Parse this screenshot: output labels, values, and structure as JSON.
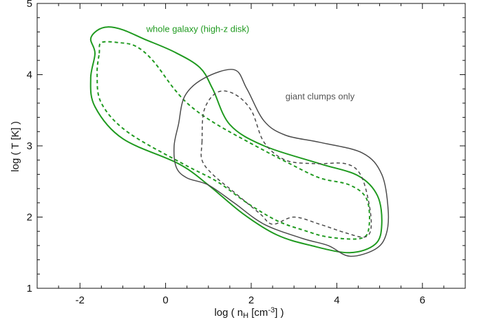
{
  "chart_data": {
    "type": "line",
    "xlabel": "log ( n",
    "xlabel_sub": "H",
    "xlabel_unit": " [cm",
    "xlabel_sup": "-3",
    "xlabel_end": "] )",
    "ylabel": "log ( T [K] )",
    "xlim": [
      -3,
      7
    ],
    "ylim": [
      1,
      5
    ],
    "xticks": [
      -2,
      0,
      2,
      4,
      6
    ],
    "yticks": [
      1,
      2,
      3,
      4,
      5
    ],
    "grid": false,
    "annotations": [
      {
        "text": "whole galaxy (high-z disk)",
        "color": "#1f9a1f",
        "x": -0.45,
        "y": 4.6
      },
      {
        "text": "giant clumps only",
        "color": "#555555",
        "x": 2.8,
        "y": 3.65
      }
    ],
    "series": [
      {
        "color": "#1f9a1f",
        "style": "solid",
        "closed": true,
        "points": [
          [
            -1.75,
            4.5
          ],
          [
            -1.6,
            4.62
          ],
          [
            -1.35,
            4.67
          ],
          [
            -1.0,
            4.63
          ],
          [
            -0.5,
            4.5
          ],
          [
            0.2,
            4.32
          ],
          [
            0.8,
            4.1
          ],
          [
            1.1,
            3.8
          ],
          [
            1.5,
            3.3
          ],
          [
            2.3,
            3.0
          ],
          [
            3.6,
            2.75
          ],
          [
            4.5,
            2.58
          ],
          [
            4.95,
            2.3
          ],
          [
            5.05,
            1.9
          ],
          [
            4.9,
            1.62
          ],
          [
            4.3,
            1.5
          ],
          [
            3.4,
            1.6
          ],
          [
            2.6,
            1.75
          ],
          [
            1.8,
            2.05
          ],
          [
            1.0,
            2.45
          ],
          [
            0.3,
            2.75
          ],
          [
            -1.0,
            3.1
          ],
          [
            -1.65,
            3.55
          ],
          [
            -1.75,
            3.95
          ],
          [
            -1.65,
            4.3
          ]
        ]
      },
      {
        "color": "#1f9a1f",
        "style": "dashed",
        "closed": true,
        "points": [
          [
            -1.55,
            4.3
          ],
          [
            -1.5,
            4.45
          ],
          [
            -1.1,
            4.45
          ],
          [
            -0.7,
            4.4
          ],
          [
            -0.3,
            4.2
          ],
          [
            0.2,
            3.8
          ],
          [
            0.6,
            3.55
          ],
          [
            1.2,
            3.3
          ],
          [
            2.1,
            3.0
          ],
          [
            2.9,
            2.75
          ],
          [
            3.6,
            2.55
          ],
          [
            4.3,
            2.45
          ],
          [
            4.7,
            2.25
          ],
          [
            4.75,
            1.85
          ],
          [
            4.55,
            1.7
          ],
          [
            3.8,
            1.72
          ],
          [
            3.2,
            1.82
          ],
          [
            2.6,
            1.95
          ],
          [
            1.9,
            2.2
          ],
          [
            1.2,
            2.5
          ],
          [
            0.4,
            2.75
          ],
          [
            -0.9,
            3.2
          ],
          [
            -1.5,
            3.6
          ],
          [
            -1.6,
            4.0
          ]
        ]
      },
      {
        "color": "#4a4a4a",
        "style": "solid",
        "closed": true,
        "points": [
          [
            0.3,
            3.3
          ],
          [
            0.45,
            3.7
          ],
          [
            0.9,
            3.95
          ],
          [
            1.6,
            4.07
          ],
          [
            1.9,
            3.8
          ],
          [
            2.3,
            3.35
          ],
          [
            2.8,
            3.15
          ],
          [
            3.6,
            3.05
          ],
          [
            4.6,
            2.9
          ],
          [
            5.05,
            2.6
          ],
          [
            5.2,
            2.1
          ],
          [
            5.15,
            1.75
          ],
          [
            4.9,
            1.55
          ],
          [
            4.3,
            1.45
          ],
          [
            3.8,
            1.6
          ],
          [
            3.2,
            1.7
          ],
          [
            2.3,
            1.9
          ],
          [
            1.6,
            2.2
          ],
          [
            1.0,
            2.45
          ],
          [
            0.5,
            2.55
          ],
          [
            0.25,
            2.7
          ],
          [
            0.2,
            3.0
          ]
        ]
      },
      {
        "color": "#4a4a4a",
        "style": "dashed",
        "closed": true,
        "points": [
          [
            0.85,
            3.05
          ],
          [
            0.9,
            3.5
          ],
          [
            1.2,
            3.75
          ],
          [
            1.6,
            3.73
          ],
          [
            2.0,
            3.5
          ],
          [
            2.3,
            3.05
          ],
          [
            2.8,
            2.8
          ],
          [
            3.5,
            2.75
          ],
          [
            4.2,
            2.75
          ],
          [
            4.55,
            2.6
          ],
          [
            4.75,
            2.2
          ],
          [
            4.8,
            1.85
          ],
          [
            4.65,
            1.72
          ],
          [
            4.2,
            1.78
          ],
          [
            3.6,
            1.9
          ],
          [
            3.0,
            2.0
          ],
          [
            2.5,
            1.9
          ],
          [
            2.2,
            2.05
          ],
          [
            1.6,
            2.35
          ],
          [
            1.1,
            2.6
          ],
          [
            0.85,
            2.8
          ]
        ]
      }
    ]
  }
}
